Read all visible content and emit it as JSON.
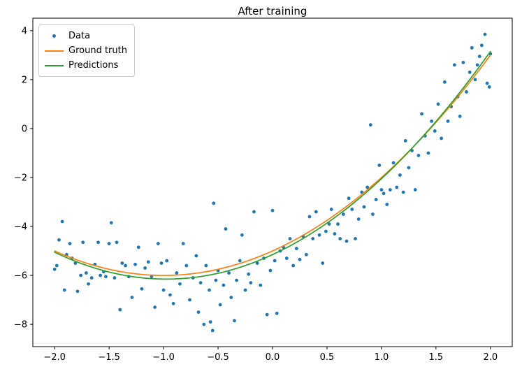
{
  "chart_data": {
    "type": "scatter",
    "title": "After training",
    "xlabel": "",
    "ylabel": "",
    "xlim": [
      -2.2,
      2.2
    ],
    "ylim": [
      -8.91,
      4.51
    ],
    "grid": false,
    "xticks": {
      "values": [
        -2.0,
        -1.5,
        -1.0,
        -0.5,
        0.0,
        0.5,
        1.0,
        1.5,
        2.0
      ],
      "labels": [
        "−2.0",
        "−1.5",
        "−1.0",
        "−0.5",
        "0.0",
        "0.5",
        "1.0",
        "1.5",
        "2.0"
      ]
    },
    "yticks": {
      "values": [
        -8,
        -6,
        -4,
        -2,
        0,
        2,
        4
      ],
      "labels": [
        "−8",
        "−6",
        "−4",
        "−2",
        "0",
        "2",
        "4"
      ]
    },
    "legend": {
      "position": "upper left",
      "entries": [
        {
          "label": "Data",
          "marker": "dot",
          "color": "#1f77b4"
        },
        {
          "label": "Ground truth",
          "marker": "line",
          "color": "#ff7f0e"
        },
        {
          "label": "Predictions",
          "marker": "line",
          "color": "#2ca02c"
        }
      ]
    },
    "series": [
      {
        "name": "Data",
        "type": "scatter",
        "color": "#1f77b4",
        "marker_radius": 2.4,
        "points": [
          [
            -2.0,
            -5.75
          ],
          [
            -1.98,
            -5.6
          ],
          [
            -1.96,
            -4.55
          ],
          [
            -1.93,
            -3.8
          ],
          [
            -1.91,
            -6.6
          ],
          [
            -1.89,
            -5.15
          ],
          [
            -1.86,
            -4.7
          ],
          [
            -1.84,
            -5.3
          ],
          [
            -1.81,
            -5.5
          ],
          [
            -1.79,
            -6.65
          ],
          [
            -1.76,
            -6.0
          ],
          [
            -1.74,
            -4.65
          ],
          [
            -1.71,
            -5.9
          ],
          [
            -1.69,
            -6.35
          ],
          [
            -1.66,
            -6.1
          ],
          [
            -1.63,
            -5.55
          ],
          [
            -1.6,
            -4.65
          ],
          [
            -1.58,
            -6.0
          ],
          [
            -1.55,
            -5.85
          ],
          [
            -1.53,
            -6.05
          ],
          [
            -1.5,
            -4.7
          ],
          [
            -1.48,
            -3.85
          ],
          [
            -1.45,
            -6.1
          ],
          [
            -1.43,
            -4.65
          ],
          [
            -1.4,
            -7.4
          ],
          [
            -1.38,
            -5.5
          ],
          [
            -1.35,
            -5.6
          ],
          [
            -1.32,
            -6.05
          ],
          [
            -1.29,
            -6.9
          ],
          [
            -1.26,
            -5.55
          ],
          [
            -1.23,
            -4.85
          ],
          [
            -1.2,
            -6.55
          ],
          [
            -1.17,
            -5.7
          ],
          [
            -1.14,
            -5.45
          ],
          [
            -1.11,
            -6.05
          ],
          [
            -1.08,
            -7.3
          ],
          [
            -1.05,
            -4.7
          ],
          [
            -1.02,
            -5.5
          ],
          [
            -1.0,
            -6.6
          ],
          [
            -0.97,
            -5.4
          ],
          [
            -0.94,
            -6.8
          ],
          [
            -0.91,
            -7.15
          ],
          [
            -0.88,
            -5.9
          ],
          [
            -0.85,
            -6.35
          ],
          [
            -0.82,
            -4.7
          ],
          [
            -0.79,
            -5.6
          ],
          [
            -0.76,
            -7.0
          ],
          [
            -0.73,
            -6.1
          ],
          [
            -0.7,
            -5.2
          ],
          [
            -0.68,
            -7.5
          ],
          [
            -0.66,
            -6.3
          ],
          [
            -0.63,
            -8.0
          ],
          [
            -0.61,
            -5.6
          ],
          [
            -0.58,
            -6.6
          ],
          [
            -0.57,
            -7.9
          ],
          [
            -0.55,
            -8.25
          ],
          [
            -0.54,
            -3.05
          ],
          [
            -0.52,
            -6.2
          ],
          [
            -0.5,
            -5.8
          ],
          [
            -0.48,
            -7.2
          ],
          [
            -0.45,
            -6.4
          ],
          [
            -0.43,
            -4.1
          ],
          [
            -0.4,
            -5.9
          ],
          [
            -0.38,
            -6.9
          ],
          [
            -0.35,
            -7.85
          ],
          [
            -0.33,
            -6.2
          ],
          [
            -0.3,
            -5.4
          ],
          [
            -0.28,
            -4.35
          ],
          [
            -0.25,
            -6.6
          ],
          [
            -0.22,
            -5.95
          ],
          [
            -0.2,
            -6.3
          ],
          [
            -0.17,
            -3.4
          ],
          [
            -0.14,
            -5.5
          ],
          [
            -0.11,
            -6.4
          ],
          [
            -0.08,
            -5.3
          ],
          [
            -0.05,
            -7.6
          ],
          [
            -0.02,
            -5.8
          ],
          [
            0.0,
            -3.35
          ],
          [
            0.02,
            -5.4
          ],
          [
            0.04,
            -7.55
          ],
          [
            0.07,
            -5.0
          ],
          [
            0.1,
            -4.85
          ],
          [
            0.13,
            -5.3
          ],
          [
            0.16,
            -4.5
          ],
          [
            0.19,
            -5.6
          ],
          [
            0.22,
            -4.9
          ],
          [
            0.25,
            -5.35
          ],
          [
            0.28,
            -4.4
          ],
          [
            0.31,
            -5.15
          ],
          [
            0.34,
            -3.6
          ],
          [
            0.37,
            -4.5
          ],
          [
            0.4,
            -3.4
          ],
          [
            0.43,
            -4.35
          ],
          [
            0.46,
            -5.5
          ],
          [
            0.49,
            -4.2
          ],
          [
            0.52,
            -3.9
          ],
          [
            0.54,
            -3.3
          ],
          [
            0.57,
            -4.3
          ],
          [
            0.6,
            -3.9
          ],
          [
            0.62,
            -4.5
          ],
          [
            0.65,
            -3.5
          ],
          [
            0.68,
            -4.6
          ],
          [
            0.7,
            -2.85
          ],
          [
            0.73,
            -3.3
          ],
          [
            0.76,
            -4.5
          ],
          [
            0.79,
            -3.7
          ],
          [
            0.82,
            -2.6
          ],
          [
            0.84,
            -3.2
          ],
          [
            0.87,
            -2.4
          ],
          [
            0.9,
            0.15
          ],
          [
            0.92,
            -3.5
          ],
          [
            0.95,
            -2.9
          ],
          [
            0.98,
            -1.5
          ],
          [
            1.0,
            -2.5
          ],
          [
            1.02,
            -2.65
          ],
          [
            1.05,
            -3.1
          ],
          [
            1.08,
            -2.5
          ],
          [
            1.11,
            -1.4
          ],
          [
            1.14,
            -2.4
          ],
          [
            1.17,
            -1.9
          ],
          [
            1.2,
            -2.6
          ],
          [
            1.22,
            -0.5
          ],
          [
            1.25,
            -1.6
          ],
          [
            1.28,
            -0.9
          ],
          [
            1.31,
            -2.5
          ],
          [
            1.34,
            -1.1
          ],
          [
            1.37,
            0.6
          ],
          [
            1.4,
            -0.3
          ],
          [
            1.43,
            -1.0
          ],
          [
            1.46,
            0.3
          ],
          [
            1.49,
            -0.1
          ],
          [
            1.52,
            1.0
          ],
          [
            1.55,
            -0.4
          ],
          [
            1.58,
            1.9
          ],
          [
            1.61,
            0.3
          ],
          [
            1.64,
            0.9
          ],
          [
            1.67,
            2.6
          ],
          [
            1.7,
            1.3
          ],
          [
            1.72,
            0.5
          ],
          [
            1.75,
            2.7
          ],
          [
            1.78,
            1.5
          ],
          [
            1.81,
            2.3
          ],
          [
            1.83,
            3.3
          ],
          [
            1.86,
            2.0
          ],
          [
            1.88,
            2.6
          ],
          [
            1.9,
            2.95
          ],
          [
            1.92,
            3.4
          ],
          [
            1.95,
            3.85
          ],
          [
            1.97,
            1.85
          ],
          [
            1.99,
            1.7
          ],
          [
            2.0,
            3.05
          ]
        ]
      },
      {
        "name": "Ground truth",
        "type": "line",
        "color": "#ff7f0e",
        "poly_coeffs": [
          1.0,
          2.0,
          -5.0
        ],
        "x_range": [
          -2.0,
          2.0
        ]
      },
      {
        "name": "Predictions",
        "type": "line",
        "color": "#2ca02c",
        "poly_coeffs": [
          1.05,
          2.05,
          -5.15
        ],
        "x_range": [
          -2.0,
          2.0
        ]
      }
    ]
  }
}
